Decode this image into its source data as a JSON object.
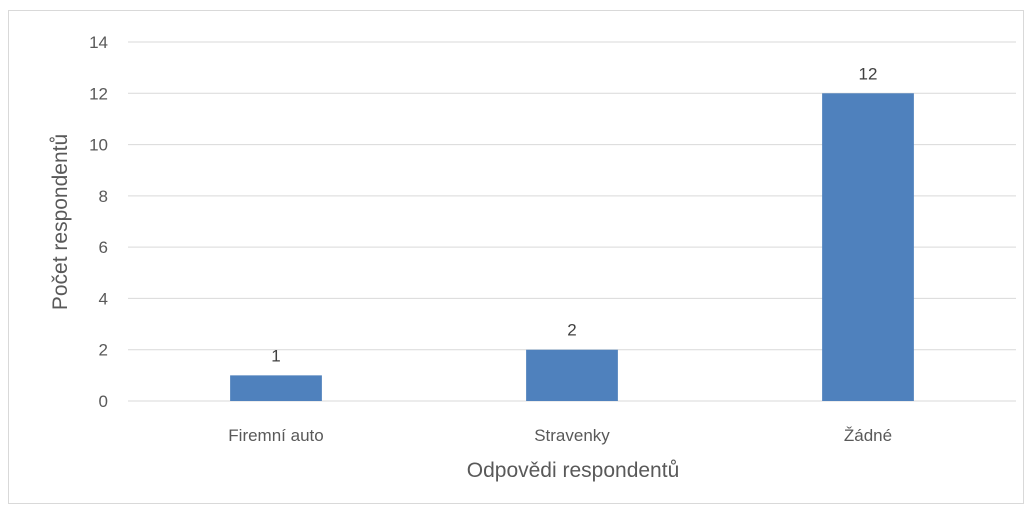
{
  "chart_data": {
    "type": "bar",
    "categories": [
      "Firemní auto",
      "Stravenky",
      "Žádné"
    ],
    "values": [
      1,
      2,
      12
    ],
    "title": "",
    "xlabel": "Odpovědi respondentů",
    "ylabel": "Počet respondentů",
    "ylim": [
      0,
      14
    ],
    "yticks": [
      0,
      2,
      4,
      6,
      8,
      10,
      12,
      14
    ],
    "grid": true,
    "legend": "none",
    "data_labels": true,
    "colors": {
      "bar": "#4f81bd",
      "grid": "#d9d9d9",
      "text": "#595959"
    }
  }
}
